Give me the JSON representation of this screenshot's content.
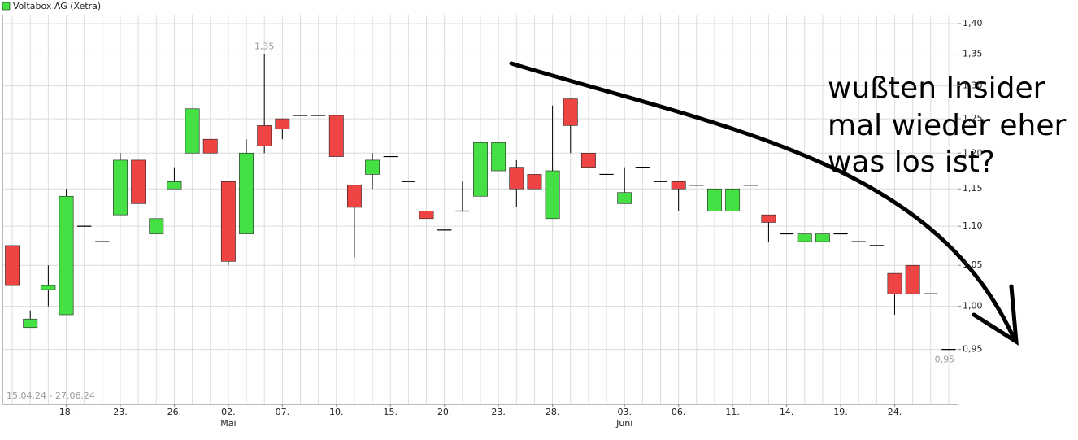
{
  "chart_data": {
    "type": "candlestick",
    "legend": "Voltabox AG (Xetra)",
    "date_range": "15.04.24 - 27.06.24",
    "up_color": "#44e044",
    "down_color": "#ef4444",
    "log_scale": true,
    "grid": true,
    "categories": [
      null,
      null,
      null,
      "18.",
      null,
      null,
      "23.",
      null,
      null,
      "26.",
      null,
      null,
      "02.",
      null,
      null,
      "07.",
      null,
      null,
      "10.",
      null,
      null,
      "15.",
      null,
      null,
      "20.",
      null,
      null,
      "23.",
      null,
      null,
      "28.",
      null,
      null,
      null,
      "03.",
      null,
      null,
      "06.",
      null,
      null,
      "11.",
      null,
      null,
      "14.",
      null,
      null,
      "19.",
      null,
      null,
      "24.",
      null,
      null,
      null
    ],
    "month_categories": [
      null,
      null,
      null,
      null,
      null,
      null,
      null,
      null,
      null,
      null,
      null,
      null,
      "Mai",
      null,
      null,
      null,
      null,
      null,
      null,
      null,
      null,
      null,
      null,
      null,
      null,
      null,
      null,
      null,
      null,
      null,
      null,
      null,
      null,
      null,
      "Juni",
      null,
      null,
      null,
      null,
      null,
      null,
      null,
      null,
      null,
      null,
      null,
      null,
      null,
      null,
      null,
      null,
      null,
      null
    ],
    "open": [
      1.075,
      0.975,
      1.02,
      0.99,
      1.1,
      1.08,
      1.115,
      1.19,
      1.09,
      1.15,
      1.2,
      1.22,
      1.16,
      1.09,
      1.24,
      1.25,
      1.255,
      1.255,
      1.255,
      1.155,
      1.17,
      1.195,
      1.16,
      1.12,
      1.095,
      1.12,
      1.14,
      1.175,
      1.18,
      1.17,
      1.11,
      1.28,
      1.2,
      1.17,
      1.13,
      1.18,
      1.16,
      1.16,
      1.155,
      1.12,
      1.12,
      1.155,
      1.115,
      1.09,
      1.08,
      1.08,
      1.09,
      1.08,
      1.075,
      1.04,
      1.05,
      1.015,
      0.95
    ],
    "high": [
      1.075,
      0.995,
      1.05,
      1.15,
      1.1,
      1.08,
      1.2,
      1.19,
      1.11,
      1.18,
      1.265,
      1.22,
      1.16,
      1.22,
      1.35,
      1.25,
      1.255,
      1.255,
      1.255,
      1.155,
      1.2,
      1.195,
      1.16,
      1.12,
      1.095,
      1.16,
      1.215,
      1.215,
      1.19,
      1.17,
      1.27,
      1.28,
      1.2,
      1.17,
      1.18,
      1.18,
      1.16,
      1.16,
      1.155,
      1.15,
      1.15,
      1.155,
      1.115,
      1.09,
      1.09,
      1.09,
      1.09,
      1.08,
      1.075,
      1.04,
      1.05,
      1.015,
      0.95
    ],
    "low": [
      1.025,
      0.975,
      1.0,
      0.99,
      1.1,
      1.08,
      1.115,
      1.13,
      1.09,
      1.15,
      1.2,
      1.2,
      1.05,
      1.09,
      1.2,
      1.22,
      1.255,
      1.255,
      1.195,
      1.06,
      1.15,
      1.195,
      1.16,
      1.11,
      1.095,
      1.12,
      1.14,
      1.175,
      1.125,
      1.15,
      1.11,
      1.2,
      1.18,
      1.17,
      1.13,
      1.18,
      1.16,
      1.12,
      1.155,
      1.12,
      1.12,
      1.155,
      1.08,
      1.09,
      1.08,
      1.08,
      1.09,
      1.08,
      1.075,
      0.99,
      1.015,
      1.015,
      0.95
    ],
    "close": [
      1.025,
      0.985,
      1.025,
      1.14,
      1.1,
      1.08,
      1.19,
      1.13,
      1.11,
      1.16,
      1.265,
      1.2,
      1.055,
      1.2,
      1.21,
      1.235,
      1.255,
      1.255,
      1.195,
      1.125,
      1.19,
      1.195,
      1.16,
      1.11,
      1.095,
      1.12,
      1.215,
      1.215,
      1.15,
      1.15,
      1.175,
      1.24,
      1.18,
      1.17,
      1.145,
      1.18,
      1.16,
      1.15,
      1.155,
      1.15,
      1.15,
      1.155,
      1.105,
      1.09,
      1.09,
      1.09,
      1.09,
      1.08,
      1.075,
      1.015,
      1.015,
      1.015,
      0.95
    ],
    "max_label": {
      "value": 1.35,
      "label": "1,35"
    },
    "min_label": {
      "value": 0.95,
      "label": "0,95"
    },
    "ylim": [
      0.89,
      1.415
    ],
    "yticks": [
      {
        "value": 0.95,
        "label": "0,95"
      },
      {
        "value": 1.0,
        "label": "1,00"
      },
      {
        "value": 1.05,
        "label": "1,05"
      },
      {
        "value": 1.1,
        "label": "1,10"
      },
      {
        "value": 1.15,
        "label": "1,15"
      },
      {
        "value": 1.2,
        "label": "1,20"
      },
      {
        "value": 1.25,
        "label": "1,25"
      },
      {
        "value": 1.3,
        "label": "1,30"
      },
      {
        "value": 1.35,
        "label": "1,35"
      },
      {
        "value": 1.4,
        "label": "1,40"
      }
    ],
    "annotation_lines": [
      "wußten Insider",
      "mal wieder eher",
      "was los ist?"
    ]
  }
}
